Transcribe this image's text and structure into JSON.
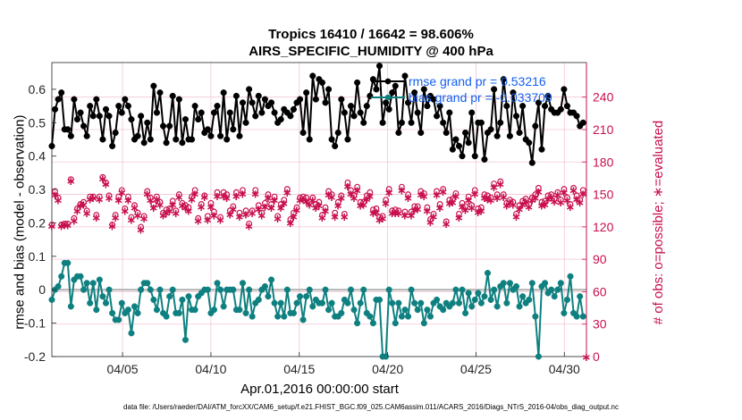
{
  "chart_data": {
    "type": "line",
    "title": "Tropics 16410 / 16642 = 98.606%",
    "subtitle": "AIRS_SPECIFIC_HUMIDITY @ 400 hPa",
    "xlabel": "Apr.01,2016 00:00:00 start",
    "ylabel": "rmse and bias (model - observation)",
    "y2label": "# of obs: o=possible; ∗=evaluated",
    "footer": "data file: /Users/raeder/DAI/ATM_forcXX/CAM6_setup/f.e21.FHIST_BGC.f09_025.CAM6assim.011/ACARS_2016/Diags_NTrS_2016-04/obs_diag_output.nc",
    "xlim": [
      1.0,
      31.25
    ],
    "ylim": [
      -0.2,
      0.68
    ],
    "y2lim": [
      0,
      272
    ],
    "x_tick_values": [
      5,
      10,
      15,
      20,
      25,
      30
    ],
    "x_tick_labels": [
      "04/05",
      "04/10",
      "04/15",
      "04/20",
      "04/25",
      "04/30"
    ],
    "y_ticks": [
      -0.2,
      -0.1,
      0,
      0.1,
      0.2,
      0.3,
      0.4,
      0.5,
      0.6
    ],
    "y_tick_labels": [
      "-0.2",
      "-0.1",
      "0",
      "0.1",
      "0.2",
      "0.3",
      "0.4",
      "0.5",
      "0.6"
    ],
    "y2_ticks": [
      0,
      30,
      60,
      90,
      120,
      150,
      180,
      210,
      240
    ],
    "y2_tick_labels": [
      "0",
      "30",
      "60",
      "90",
      "120",
      "150",
      "180",
      "210",
      "240"
    ],
    "legend": [
      {
        "label": "rmse grand pr = 0.53216",
        "color": "#000000"
      },
      {
        "label": "bias grand pr = -0.033709",
        "color": "#0f8080"
      }
    ],
    "legend_position": "top-right",
    "colors": {
      "rmse": "#000000",
      "bias": "#0f8080",
      "obs": "#c8104f",
      "grid": "#f2c6d3",
      "zero_line": "#b0b0b0"
    },
    "series": [
      {
        "name": "rmse",
        "values": [
          0.43,
          0.54,
          0.57,
          0.59,
          0.48,
          0.48,
          0.46,
          0.57,
          0.51,
          0.53,
          0.49,
          0.46,
          0.55,
          0.52,
          0.57,
          0.52,
          0.45,
          0.54,
          0.52,
          0.43,
          0.47,
          0.55,
          0.53,
          0.57,
          0.55,
          0.51,
          0.45,
          0.46,
          0.52,
          0.44,
          0.5,
          0.45,
          0.61,
          0.53,
          0.59,
          0.49,
          0.44,
          0.49,
          0.58,
          0.45,
          0.57,
          0.44,
          0.51,
          0.45,
          0.45,
          0.55,
          0.51,
          0.53,
          0.47,
          0.48,
          0.46,
          0.53,
          0.55,
          0.46,
          0.59,
          0.45,
          0.53,
          0.48,
          0.58,
          0.46,
          0.56,
          0.5,
          0.6,
          0.56,
          0.52,
          0.58,
          0.53,
          0.57,
          0.55,
          0.56,
          0.53,
          0.5,
          0.51,
          0.54,
          0.53,
          0.52,
          0.54,
          0.56,
          0.57,
          0.47,
          0.59,
          0.45,
          0.64,
          0.57,
          0.63,
          0.62,
          0.56,
          0.6,
          0.45,
          0.43,
          0.47,
          0.57,
          0.53,
          0.45,
          0.55,
          0.52,
          0.62,
          0.53,
          0.5,
          0.55,
          0.58,
          0.63,
          0.6,
          0.67,
          0.5,
          0.56,
          0.54,
          0.59,
          0.61,
          0.47,
          0.5,
          0.64,
          0.56,
          0.5,
          0.59,
          0.53,
          0.47,
          0.6,
          0.55,
          0.58,
          0.57,
          0.52,
          0.55,
          0.5,
          0.47,
          0.53,
          0.42,
          0.45,
          0.43,
          0.4,
          0.47,
          0.44,
          0.53,
          0.4,
          0.5,
          0.5,
          0.39,
          0.47,
          0.48,
          0.6,
          0.46,
          0.5,
          0.63,
          0.55,
          0.46,
          0.59,
          0.52,
          0.47,
          0.55,
          0.45,
          0.44,
          0.38,
          0.49,
          0.56,
          0.42,
          0.55,
          0.58,
          0.54,
          0.53,
          0.53,
          0.54,
          0.6,
          0.55,
          0.53,
          0.53,
          0.52,
          0.49,
          0.5
        ]
      },
      {
        "name": "bias",
        "values": [
          -0.03,
          0.0,
          0.01,
          0.04,
          0.08,
          0.08,
          -0.05,
          0.03,
          0.04,
          0.04,
          0.0,
          0.02,
          -0.04,
          0.02,
          -0.06,
          0.03,
          -0.02,
          -0.04,
          0.0,
          -0.07,
          -0.09,
          -0.09,
          -0.04,
          -0.07,
          -0.06,
          -0.13,
          -0.05,
          -0.07,
          0.0,
          0.02,
          0.02,
          0.0,
          -0.03,
          -0.06,
          0.0,
          -0.07,
          -0.08,
          -0.02,
          0.0,
          -0.07,
          -0.07,
          -0.03,
          -0.15,
          -0.02,
          -0.06,
          -0.06,
          -0.02,
          -0.01,
          0.0,
          0.0,
          -0.07,
          -0.06,
          0.02,
          0.0,
          -0.05,
          0.0,
          0.0,
          0.0,
          -0.06,
          -0.06,
          0.02,
          -0.07,
          0.0,
          -0.08,
          -0.04,
          -0.03,
          0.0,
          0.01,
          -0.02,
          0.03,
          -0.04,
          -0.08,
          -0.04,
          -0.08,
          0.0,
          -0.07,
          -0.07,
          -0.04,
          -0.02,
          -0.09,
          -0.02,
          0.0,
          -0.05,
          -0.03,
          -0.04,
          -0.04,
          0.0,
          -0.06,
          -0.04,
          -0.08,
          -0.08,
          -0.07,
          -0.03,
          -0.04,
          0.0,
          -0.06,
          -0.1,
          -0.04,
          0.0,
          -0.07,
          -0.08,
          -0.1,
          -0.03,
          -0.03,
          -0.2,
          -0.2,
          0.0,
          -0.04,
          -0.1,
          -0.04,
          -0.08,
          -0.06,
          -0.08,
          0.0,
          -0.04,
          -0.06,
          -0.04,
          -0.1,
          -0.06,
          -0.08,
          -0.04,
          -0.03,
          -0.05,
          -0.06,
          -0.04,
          -0.05,
          -0.04,
          0.0,
          -0.04,
          0.0,
          -0.07,
          -0.01,
          -0.05,
          -0.03,
          -0.01,
          -0.04,
          -0.02,
          0.05,
          -0.03,
          0.0,
          -0.05,
          0.01,
          0.02,
          -0.04,
          0.02,
          0.0,
          0.01,
          -0.05,
          -0.02,
          -0.04,
          -0.03,
          0.02,
          -0.08,
          -0.2,
          0.01,
          0.02,
          -0.01,
          0.0,
          -0.02,
          0.0,
          0.02,
          -0.07,
          -0.03,
          0.04,
          -0.07,
          -0.08,
          -0.02,
          -0.08
        ]
      },
      {
        "name": "obs_possible",
        "values": [
          122,
          153,
          147,
          122,
          123,
          123,
          164,
          128,
          137,
          141,
          143,
          135,
          148,
          148,
          131,
          148,
          166,
          161,
          149,
          122,
          131,
          148,
          154,
          137,
          148,
          129,
          140,
          133,
          120,
          130,
          153,
          147,
          141,
          148,
          143,
          133,
          136,
          137,
          144,
          135,
          150,
          142,
          140,
          138,
          148,
          154,
          128,
          141,
          149,
          130,
          142,
          134,
          152,
          129,
          152,
          150,
          135,
          139,
          152,
          133,
          154,
          135,
          123,
          135,
          154,
          140,
          133,
          142,
          150,
          141,
          148,
          130,
          141,
          145,
          155,
          127,
          133,
          138,
          147,
          148,
          147,
          143,
          147,
          141,
          143,
          131,
          138,
          153,
          150,
          133,
          143,
          149,
          132,
          161,
          154,
          149,
          157,
          143,
          143,
          149,
          152,
          136,
          137,
          129,
          130,
          145,
          155,
          135,
          136,
          135,
          157,
          134,
          150,
          134,
          139,
          139,
          153,
          151,
          138,
          127,
          132,
          153,
          141,
          155,
          125,
          145,
          146,
          151,
          132,
          142,
          139,
          148,
          140,
          154,
          137,
          138,
          150,
          149,
          147,
          160,
          150,
          162,
          150,
          142,
          145,
          143,
          132,
          140,
          144,
          146,
          141,
          147,
          150,
          156,
          143,
          144,
          149,
          150,
          146,
          152,
          145,
          155,
          147,
          141,
          156,
          149,
          145,
          154,
          143,
          149,
          149,
          142
        ]
      },
      {
        "name": "obs_evaluated",
        "values": [
          121,
          150,
          145,
          121,
          122,
          122,
          163,
          126,
          135,
          140,
          141,
          133,
          146,
          147,
          129,
          146,
          165,
          160,
          147,
          121,
          129,
          145,
          152,
          135,
          145,
          127,
          138,
          131,
          118,
          128,
          151,
          145,
          138,
          146,
          141,
          131,
          133,
          135,
          141,
          133,
          148,
          140,
          138,
          135,
          146,
          151,
          126,
          139,
          148,
          127,
          139,
          131,
          149,
          127,
          149,
          147,
          132,
          137,
          149,
          130,
          151,
          132,
          121,
          133,
          151,
          137,
          131,
          139,
          147,
          138,
          145,
          128,
          138,
          142,
          152,
          124,
          130,
          136,
          145,
          146,
          144,
          141,
          145,
          138,
          140,
          129,
          135,
          150,
          148,
          130,
          140,
          147,
          130,
          158,
          151,
          147,
          154,
          140,
          141,
          146,
          149,
          133,
          134,
          127,
          128,
          142,
          152,
          133,
          133,
          133,
          154,
          131,
          147,
          131,
          136,
          137,
          150,
          149,
          135,
          125,
          130,
          150,
          138,
          153,
          123,
          142,
          143,
          149,
          129,
          139,
          136,
          145,
          138,
          151,
          134,
          135,
          147,
          146,
          145,
          157,
          147,
          160,
          148,
          140,
          143,
          141,
          130,
          137,
          141,
          144,
          139,
          145,
          147,
          153,
          140,
          141,
          146,
          148,
          144,
          150,
          143,
          152,
          145,
          139,
          154,
          146,
          143,
          151,
          141,
          147,
          146,
          140
        ]
      }
    ]
  }
}
